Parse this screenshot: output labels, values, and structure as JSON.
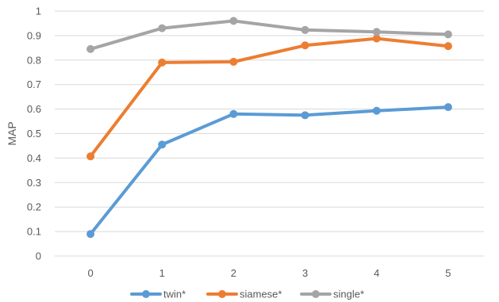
{
  "chart_data": {
    "type": "line",
    "title": "",
    "xlabel": "",
    "ylabel": "MAP",
    "x": [
      0,
      1,
      2,
      3,
      4,
      5
    ],
    "x_tick_labels": [
      "0",
      "1",
      "2",
      "3",
      "4",
      "5"
    ],
    "ylim": [
      0,
      1
    ],
    "y_ticks": [
      0,
      0.1,
      0.2,
      0.3,
      0.4,
      0.5,
      0.6,
      0.7,
      0.8,
      0.9,
      1
    ],
    "y_tick_labels": [
      "0",
      "0.1",
      "0.2",
      "0.3",
      "0.4",
      "0.5",
      "0.6",
      "0.7",
      "0.8",
      "0.9",
      "1"
    ],
    "grid": "horizontal",
    "legend_position": "bottom",
    "series": [
      {
        "name": "twin*",
        "color": "#5B9BD5",
        "values": [
          0.09,
          0.455,
          0.58,
          0.575,
          0.593,
          0.608
        ]
      },
      {
        "name": "siamese*",
        "color": "#ED7D31",
        "values": [
          0.407,
          0.79,
          0.793,
          0.86,
          0.888,
          0.857
        ]
      },
      {
        "name": "single*",
        "color": "#A5A5A5",
        "values": [
          0.845,
          0.93,
          0.96,
          0.923,
          0.915,
          0.905
        ]
      }
    ]
  }
}
